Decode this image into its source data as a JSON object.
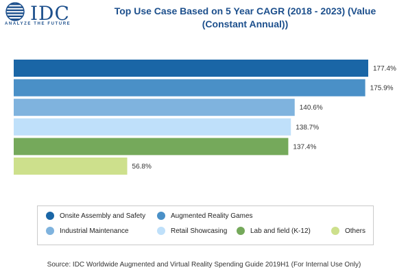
{
  "logo": {
    "word": "IDC",
    "tagline": "ANALYZE THE FUTURE"
  },
  "title_line1": "Top Use Case Based on 5 Year CAGR  (2018 - 2023) (Value",
  "title_line2": "(Constant Annual))",
  "source": "Source: IDC Worldwide Augmented and Virtual Reality Spending Guide 2019H1 (For Internal Use Only)",
  "chart_data": {
    "type": "bar",
    "orientation": "horizontal",
    "title": "Top Use Case Based on 5 Year CAGR  (2018 - 2023) (Value (Constant Annual))",
    "categories": [
      "Onsite Assembly and Safety",
      "Augmented Reality Games",
      "Industrial Maintenance",
      "Retail Showcasing",
      "Lab and field (K-12)",
      "Others"
    ],
    "values": [
      177.4,
      175.9,
      140.6,
      138.7,
      137.4,
      56.8
    ],
    "value_labels": [
      "177.4%",
      "175.9%",
      "140.6%",
      "138.7%",
      "137.4%",
      "56.8%"
    ],
    "colors": [
      "#1a66a6",
      "#4a90c7",
      "#7fb3de",
      "#bfe0fa",
      "#75a95b",
      "#cde08c"
    ],
    "unit": "%",
    "xlim": [
      0,
      177.4
    ],
    "grid": false,
    "legend_position": "bottom"
  }
}
